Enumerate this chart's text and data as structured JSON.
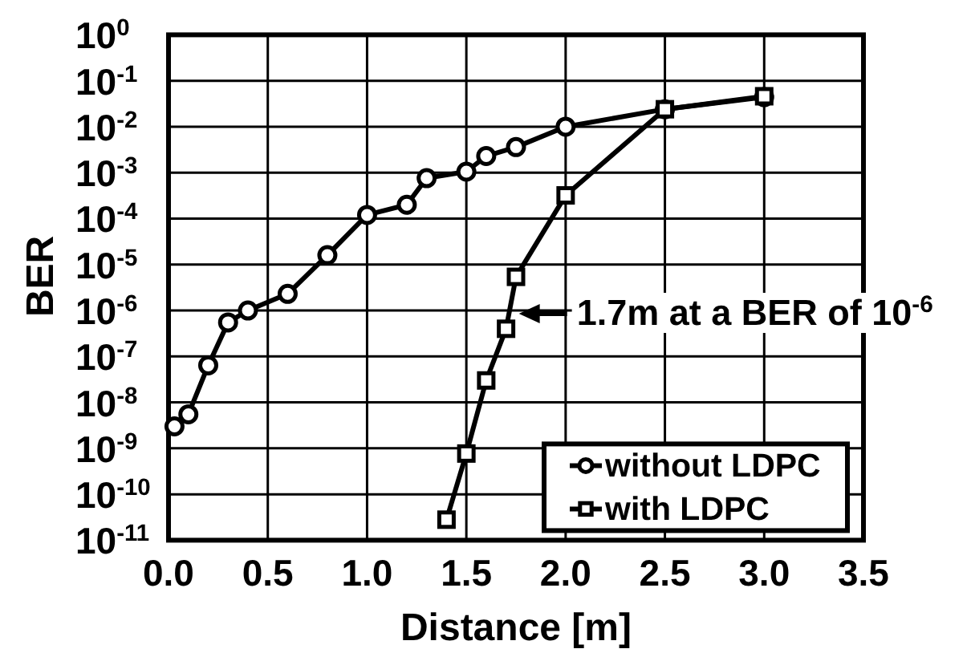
{
  "chart_data": {
    "type": "line",
    "xlabel": "Distance [m]",
    "ylabel": "BER",
    "log": "y",
    "xlim": [
      0,
      3.5
    ],
    "ylim": [
      1e-11,
      1
    ],
    "xticks": [
      {
        "value": 0,
        "label": "0.0"
      },
      0.5,
      {
        "value": 1,
        "label": "1.0"
      },
      1.5,
      {
        "value": 2,
        "label": "2.0"
      },
      2.5,
      {
        "value": 3,
        "label": "3.0"
      },
      3.5
    ],
    "yticks": [
      {
        "value": 1,
        "label": "10$^{0}$"
      },
      {
        "value": 0.1,
        "label": "10$^{-1}$"
      },
      {
        "value": 0.01,
        "label": "10$^{-2}$"
      },
      {
        "value": 0.001,
        "label": "10$^{-3}$"
      },
      {
        "value": 0.0001,
        "label": "10$^{-4}$"
      },
      {
        "value": 1e-05,
        "label": "10$^{-5}$"
      },
      {
        "value": 1e-06,
        "label": "10$^{-6}$"
      },
      {
        "value": 1e-07,
        "label": "10$^{-7}$"
      },
      {
        "value": 1e-08,
        "label": "10$^{-8}$"
      },
      {
        "value": 1e-09,
        "label": "10$^{-9}$"
      },
      {
        "value": 1e-10,
        "label": "10$^{-10}$"
      },
      {
        "value": 1e-11,
        "label": "10$^{-11}$"
      }
    ],
    "grid": true,
    "legend": "bottom right",
    "line_style": "solid",
    "series": [
      {
        "name": "without LDPC",
        "color": "#000000",
        "marker": "circle",
        "x": [
          0.03,
          0.1,
          0.2,
          0.3,
          0.4,
          0.6,
          0.8,
          1.0,
          1.2,
          1.3,
          1.5,
          1.6,
          1.75,
          2.0,
          2.5,
          3.0
        ],
        "values": [
          3e-09,
          5.5e-09,
          6.4e-08,
          5.5e-07,
          1e-06,
          2.3e-06,
          1.6e-05,
          0.00012,
          0.0002,
          0.00076,
          0.00105,
          0.0023,
          0.0036,
          0.01,
          0.024,
          0.044
        ]
      },
      {
        "name": "with LDPC",
        "color": "#000000",
        "marker": "square",
        "x": [
          1.4,
          1.5,
          1.6,
          1.7,
          1.75,
          2.0,
          2.5,
          3.0
        ],
        "values": [
          2.8e-11,
          7.7e-10,
          3e-08,
          4e-07,
          5.4e-06,
          0.00032,
          0.024,
          0.046
        ]
      }
    ],
    "annotations": [
      {
        "text": "1.7m at a BER of 10$^{-6}$",
        "x": 1.7,
        "y": 1e-06
      }
    ]
  }
}
